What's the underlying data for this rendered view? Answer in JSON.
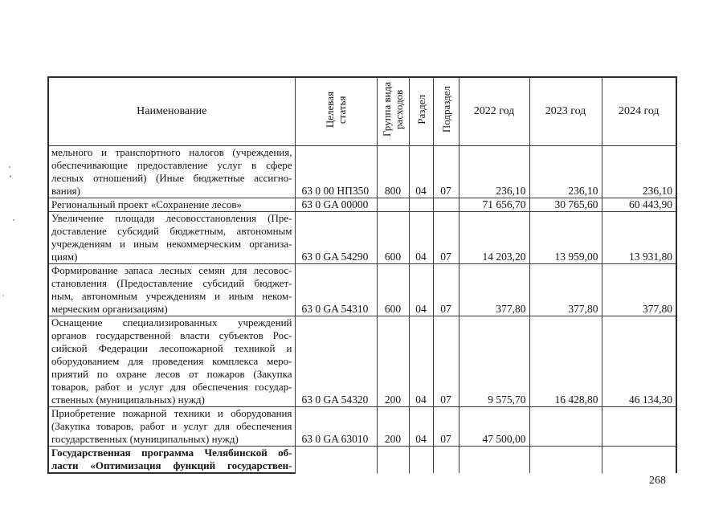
{
  "page": {
    "number": "268"
  },
  "table": {
    "headers": {
      "name": "Наименование",
      "target_article": "Целевая\nстатья",
      "expense_group": "Группа вида\nрасходов",
      "section": "Раздел",
      "subsection": "Подраздел",
      "year2022": "2022 год",
      "year2023": "2023 год",
      "year2024": "2024 год"
    },
    "rows": [
      {
        "name_lines": [
          "мельного и транспортного налогов (учреждения,",
          "обеспечивающие предоставление услуг в сфере",
          "лесных отношений) (Иные бюджетные ассигно-",
          "вания)"
        ],
        "bold": false,
        "justify_last": false,
        "code": "63 0 00 НП350",
        "group": "800",
        "section": "04",
        "subsection": "07",
        "y2022": "236,10",
        "y2023": "236,10",
        "y2024": "236,10"
      },
      {
        "name_lines": [
          "Региональный проект «Сохранение лесов»"
        ],
        "bold": false,
        "justify_last": false,
        "code": "63 0 GA 00000",
        "group": "",
        "section": "",
        "subsection": "",
        "y2022": "71 656,70",
        "y2023": "30 765,60",
        "y2024": "60 443,90"
      },
      {
        "name_lines": [
          "Увеличение площади лесовосстановления (Пре-",
          "доставление субсидий бюджетным, автономным",
          "учреждениям и иным некоммерческим организа-",
          "циям)"
        ],
        "bold": false,
        "justify_last": false,
        "code": "63 0 GA 54290",
        "group": "600",
        "section": "04",
        "subsection": "07",
        "y2022": "14 203,20",
        "y2023": "13 959,00",
        "y2024": "13 931,80"
      },
      {
        "name_lines": [
          "Формирование запаса лесных семян для лесовос-",
          "становления (Предоставление субсидий бюджет-",
          "ным, автономным учреждениям и иным неком-",
          "мерческим организациям)"
        ],
        "bold": false,
        "justify_last": false,
        "code": "63 0 GA 54310",
        "group": "600",
        "section": "04",
        "subsection": "07",
        "y2022": "377,80",
        "y2023": "377,80",
        "y2024": "377,80"
      },
      {
        "name_lines": [
          "Оснащение специализированных учреждений",
          "органов государственной власти субъектов Рос-",
          "сийской Федерации лесопожарной техникой и",
          "оборудованием для проведения комплекса меро-",
          "приятий по охране лесов от пожаров (Закупка",
          "товаров, работ и услуг для обеспечения государ-",
          "ственных (муниципальных) нужд)"
        ],
        "bold": false,
        "justify_last": false,
        "code": "63 0 GA 54320",
        "group": "200",
        "section": "04",
        "subsection": "07",
        "y2022": "9 575,70",
        "y2023": "16 428,80",
        "y2024": "46 134,30"
      },
      {
        "name_lines": [
          "Приобретение пожарной техники и оборудования",
          "(Закупка товаров, работ и услуг для обеспечения",
          "государственных (муниципальных) нужд)"
        ],
        "bold": false,
        "justify_last": false,
        "code": "63 0 GA 63010",
        "group": "200",
        "section": "04",
        "subsection": "07",
        "y2022": "47 500,00",
        "y2023": "",
        "y2024": ""
      },
      {
        "name_lines": [
          "Государственная программа Челябинской об-",
          "ласти «Оптимизация функций государствен-"
        ],
        "bold": true,
        "justify_last": true,
        "code": "",
        "group": "",
        "section": "",
        "subsection": "",
        "y2022": "",
        "y2023": "",
        "y2024": ""
      }
    ]
  }
}
